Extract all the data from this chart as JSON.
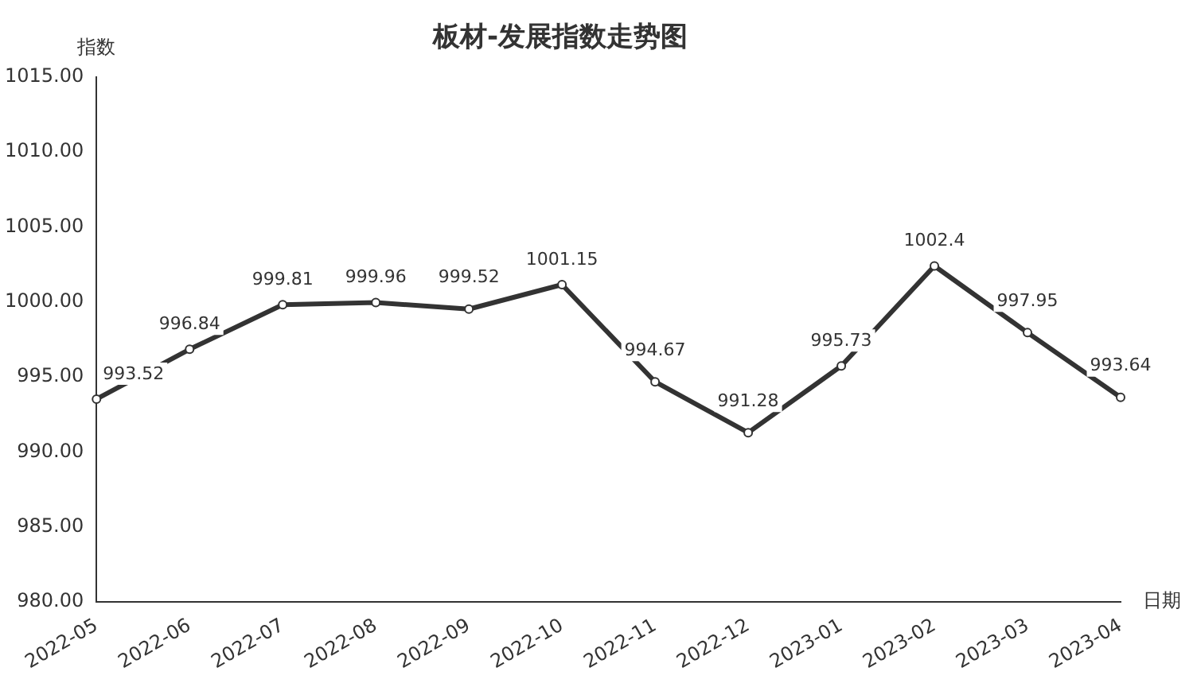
{
  "chart_data": {
    "type": "line",
    "title": "板材-发展指数走势图",
    "xlabel": "日期",
    "ylabel": "指数",
    "categories": [
      "2022-05",
      "2022-06",
      "2022-07",
      "2022-08",
      "2022-09",
      "2022-10",
      "2022-11",
      "2022-12",
      "2023-01",
      "2023-02",
      "2023-03",
      "2023-04"
    ],
    "series": [
      {
        "color": "#333333",
        "values": [
          993.52,
          996.84,
          999.81,
          999.96,
          999.52,
          1001.15,
          994.67,
          991.28,
          995.73,
          1002.4,
          997.95,
          993.64
        ]
      }
    ],
    "ylim": [
      980,
      1015
    ],
    "yticks": [
      {
        "value": 980,
        "label": "980.00"
      },
      {
        "value": 985,
        "label": "985.00"
      },
      {
        "value": 990,
        "label": "990.00"
      },
      {
        "value": 995,
        "label": "995.00"
      },
      {
        "value": 1000,
        "label": "1000.00"
      },
      {
        "value": 1005,
        "label": "1005.00"
      },
      {
        "value": 1010,
        "label": "1010.00"
      },
      {
        "value": 1015,
        "label": "1015.00"
      }
    ],
    "grid": false,
    "legend": false,
    "marker": "circle",
    "line_style": "solid",
    "data_labels": true
  }
}
